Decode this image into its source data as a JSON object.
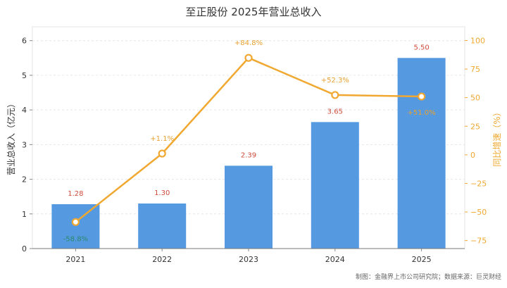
{
  "chart_data": {
    "type": "bar",
    "title": "至正股份 2025年营业总收入",
    "ylabel": "营业总收入（亿元）",
    "y2label": "同比增速（%）",
    "categories": [
      "2021",
      "2022",
      "2023",
      "2024",
      "2025"
    ],
    "series": [
      {
        "type": "bar",
        "values": [
          1.28,
          1.3,
          2.39,
          3.65,
          5.5
        ],
        "labels": [
          "1.28",
          "1.30",
          "2.39",
          "3.65",
          "5.50"
        ]
      },
      {
        "type": "line",
        "axis": "right",
        "values": [
          -58.8,
          1.1,
          84.8,
          52.3,
          51.0
        ],
        "labels": [
          "-58.8%",
          "+1.1%",
          "+84.8%",
          "+52.3%",
          "+51.0%"
        ]
      }
    ],
    "ylim": [
      0,
      6.4
    ],
    "y_ticks": [
      "0",
      "1",
      "2",
      "3",
      "4",
      "5",
      "6"
    ],
    "y2lim": [
      -82,
      112
    ],
    "y2_ticks": [
      "−75",
      "−50",
      "−25",
      "0",
      "25",
      "50",
      "75",
      "100"
    ],
    "grid": true,
    "colors": {
      "bar": "#5599e0",
      "line": "#f0a830",
      "bar_label": "#d04b3c",
      "neg_label": "#2a8a70"
    }
  },
  "footer": "制图：金融界上市公司研究院；数据来源：巨灵财经"
}
